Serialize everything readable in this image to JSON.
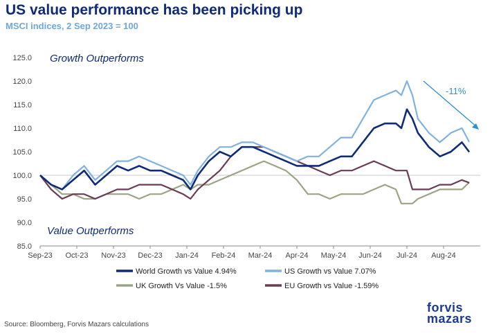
{
  "title": "US value performance has been picking up",
  "subtitle": "MSCI indices, 2 Sep 2023 = 100",
  "source": "Source: Bloomberg, Forvis Mazars calculations",
  "logo": {
    "line1": "forvis",
    "line2": "mazars"
  },
  "chart_data": {
    "type": "line",
    "title": "US value performance has been picking up",
    "subtitle": "MSCI indices, 2 Sep 2023 = 100",
    "xlabel": "",
    "ylabel": "",
    "ylim": [
      85,
      125
    ],
    "yticks": [
      "125.0",
      "120.0",
      "115.0",
      "110.0",
      "105.0",
      "100.0",
      "95.0",
      "90.0",
      "85.0"
    ],
    "x_tick_labels": [
      "Sep-23",
      "Oct-23",
      "Nov-23",
      "Dec-23",
      "Jan-24",
      "Feb-24",
      "Mar-24",
      "Apr-24",
      "May-24",
      "Jun-24",
      "Jul-24",
      "Aug-24"
    ],
    "annotations": {
      "top": "Growth Outperforms",
      "bottom": "Value Outperforms",
      "change": "-11%"
    },
    "legend_position": "bottom",
    "x_index_range": [
      0,
      12
    ],
    "series": [
      {
        "name": "World Growth vs Value 4.94%",
        "color": "#0e2a7a",
        "x": [
          0,
          0.3,
          0.6,
          0.9,
          1.2,
          1.5,
          1.8,
          2.1,
          2.4,
          2.7,
          3.0,
          3.3,
          3.6,
          3.9,
          4.1,
          4.3,
          4.6,
          4.9,
          5.2,
          5.5,
          5.8,
          6.1,
          6.4,
          6.7,
          7.0,
          7.3,
          7.6,
          7.9,
          8.2,
          8.5,
          8.8,
          9.1,
          9.4,
          9.7,
          9.85,
          10.0,
          10.15,
          10.3,
          10.6,
          10.9,
          11.2,
          11.5,
          11.7
        ],
        "values": [
          100,
          98,
          97,
          99,
          101,
          98,
          100,
          102,
          101,
          102,
          101,
          101,
          100,
          99,
          97,
          100,
          103,
          105,
          104,
          106,
          106,
          105,
          104,
          103,
          102,
          102,
          102,
          103,
          104,
          104,
          107,
          110,
          111,
          111,
          110,
          114,
          112,
          109,
          106,
          104,
          105,
          107,
          104.94
        ]
      },
      {
        "name": "US Growth vs Value 7.07%",
        "color": "#7fb2e0",
        "x": [
          0,
          0.3,
          0.6,
          0.9,
          1.2,
          1.5,
          1.8,
          2.1,
          2.4,
          2.7,
          3.0,
          3.3,
          3.6,
          3.9,
          4.1,
          4.3,
          4.6,
          4.9,
          5.2,
          5.5,
          5.8,
          6.1,
          6.4,
          6.7,
          7.0,
          7.3,
          7.6,
          7.9,
          8.2,
          8.5,
          8.8,
          9.1,
          9.4,
          9.7,
          9.85,
          10.0,
          10.15,
          10.3,
          10.6,
          10.9,
          11.2,
          11.5,
          11.7
        ],
        "values": [
          100,
          98,
          97,
          100,
          102,
          99,
          101,
          103,
          103,
          104,
          103,
          102,
          101,
          100,
          98,
          101,
          104,
          106,
          106,
          107,
          107,
          106,
          105,
          104,
          103,
          104,
          104,
          106,
          108,
          108,
          112,
          116,
          117,
          118,
          117,
          120,
          117,
          112,
          109,
          107,
          109,
          110,
          107.07
        ]
      },
      {
        "name": "UK Growth Vs Value -1.5%",
        "color": "#9aa583",
        "x": [
          0,
          0.3,
          0.6,
          0.9,
          1.2,
          1.5,
          1.8,
          2.1,
          2.4,
          2.7,
          3.0,
          3.3,
          3.6,
          3.9,
          4.1,
          4.3,
          4.6,
          4.9,
          5.2,
          5.5,
          5.8,
          6.1,
          6.4,
          6.7,
          7.0,
          7.3,
          7.6,
          7.9,
          8.2,
          8.5,
          8.8,
          9.1,
          9.4,
          9.7,
          9.85,
          10.0,
          10.15,
          10.3,
          10.6,
          10.9,
          11.2,
          11.5,
          11.7
        ],
        "values": [
          100,
          98,
          96,
          96,
          95,
          95,
          96,
          96,
          96,
          95,
          96,
          96,
          97,
          98,
          97,
          98,
          98,
          99,
          100,
          101,
          102,
          103,
          102,
          101,
          99,
          96,
          96,
          95,
          96,
          96,
          96,
          97,
          98,
          97,
          94,
          94,
          94,
          95,
          96,
          97,
          97,
          97,
          98.5
        ]
      },
      {
        "name": "EU Growth vs Value -1.59%",
        "color": "#6b3a55",
        "x": [
          0,
          0.3,
          0.6,
          0.9,
          1.2,
          1.5,
          1.8,
          2.1,
          2.4,
          2.7,
          3.0,
          3.3,
          3.6,
          3.9,
          4.1,
          4.3,
          4.6,
          4.9,
          5.2,
          5.5,
          5.8,
          6.1,
          6.4,
          6.7,
          7.0,
          7.3,
          7.6,
          7.9,
          8.2,
          8.5,
          8.8,
          9.1,
          9.4,
          9.7,
          9.85,
          10.0,
          10.15,
          10.3,
          10.6,
          10.9,
          11.2,
          11.5,
          11.7
        ],
        "values": [
          100,
          97,
          95,
          96,
          96,
          95,
          96,
          97,
          97,
          98,
          98,
          98,
          97,
          96,
          95,
          97,
          99,
          101,
          104,
          106,
          106,
          106,
          105,
          104,
          103,
          102,
          101,
          100,
          101,
          101,
          102,
          103,
          102,
          101,
          101,
          101,
          97,
          97,
          97,
          98,
          98,
          99,
          98.41
        ]
      }
    ]
  }
}
